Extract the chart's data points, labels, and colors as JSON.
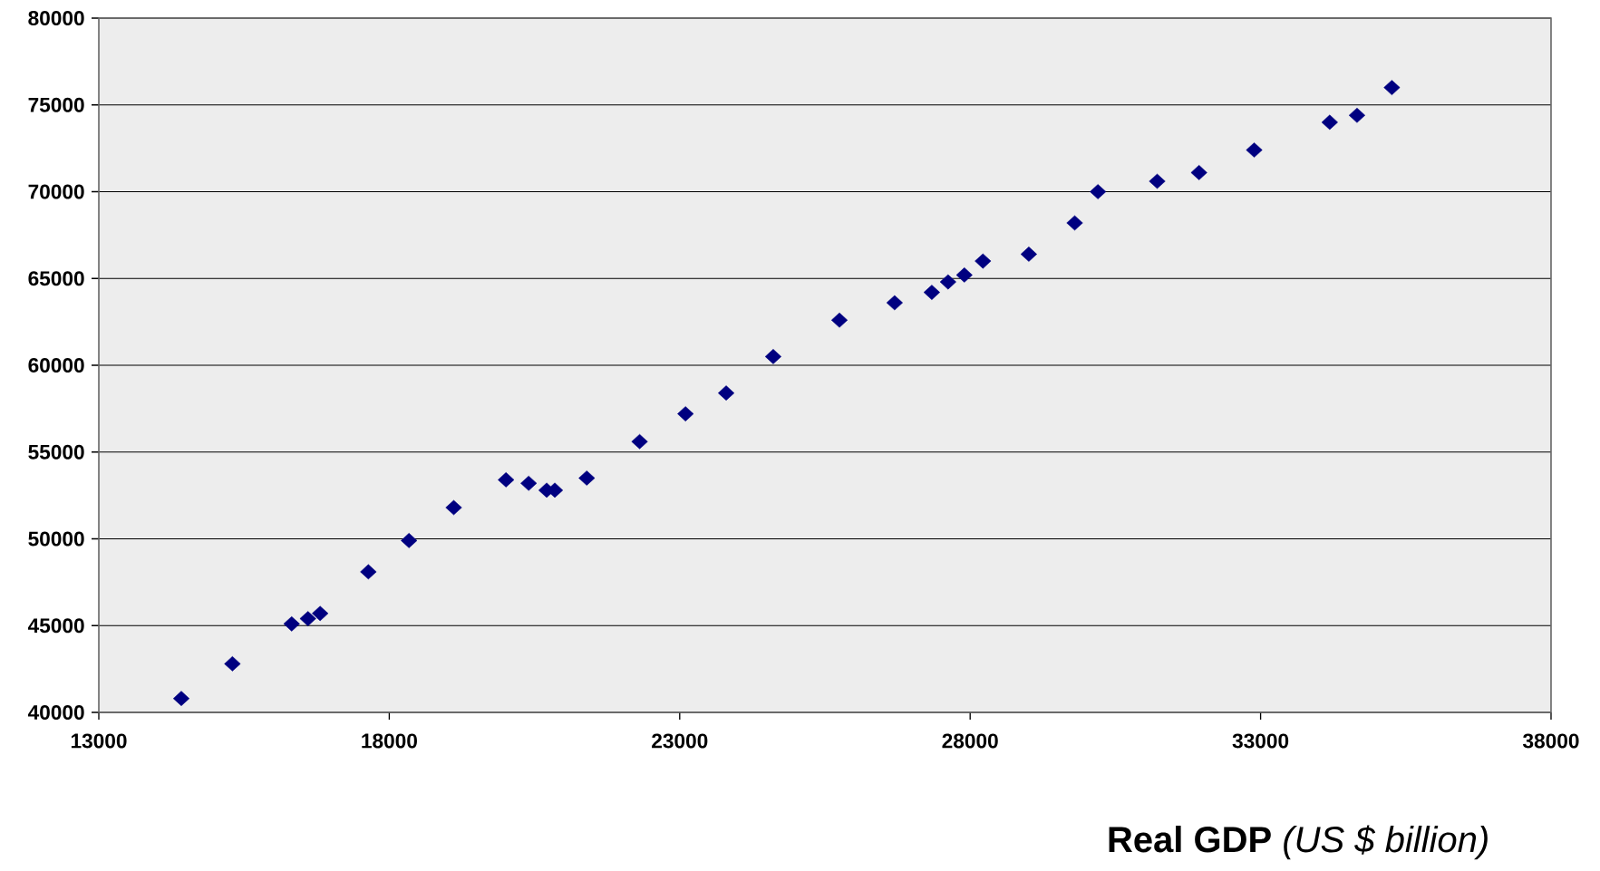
{
  "chart_data": {
    "type": "scatter",
    "xlabel": "**Real GDP** *(US $ billion)*",
    "x": [
      14420,
      15300,
      16320,
      16600,
      16810,
      17640,
      18340,
      19110,
      20010,
      20400,
      20710,
      20850,
      21400,
      22310,
      23100,
      23800,
      24610,
      25750,
      26700,
      27340,
      27620,
      27900,
      28220,
      29010,
      29800,
      30200,
      31220,
      31940,
      32890,
      34190,
      34660,
      35260
    ],
    "series": [
      {
        "color": "#000080",
        "values": [
          40800,
          42800,
          45100,
          45400,
          45700,
          48100,
          49900,
          51800,
          53400,
          53200,
          52800,
          52800,
          53500,
          55600,
          57200,
          58400,
          60500,
          62600,
          63600,
          64200,
          64800,
          65200,
          66000,
          66400,
          68200,
          70000,
          70600,
          71100,
          72400,
          74000,
          74400,
          76000
        ]
      }
    ],
    "xlim": [
      13000,
      38000
    ],
    "xticks": [
      13000,
      18000,
      23000,
      28000,
      33000,
      38000
    ],
    "ylim": [
      40000,
      80000
    ],
    "yticks": [
      40000,
      45000,
      50000,
      55000,
      60000,
      65000,
      70000,
      75000,
      80000
    ],
    "grid": "y",
    "marker": "diamond"
  }
}
